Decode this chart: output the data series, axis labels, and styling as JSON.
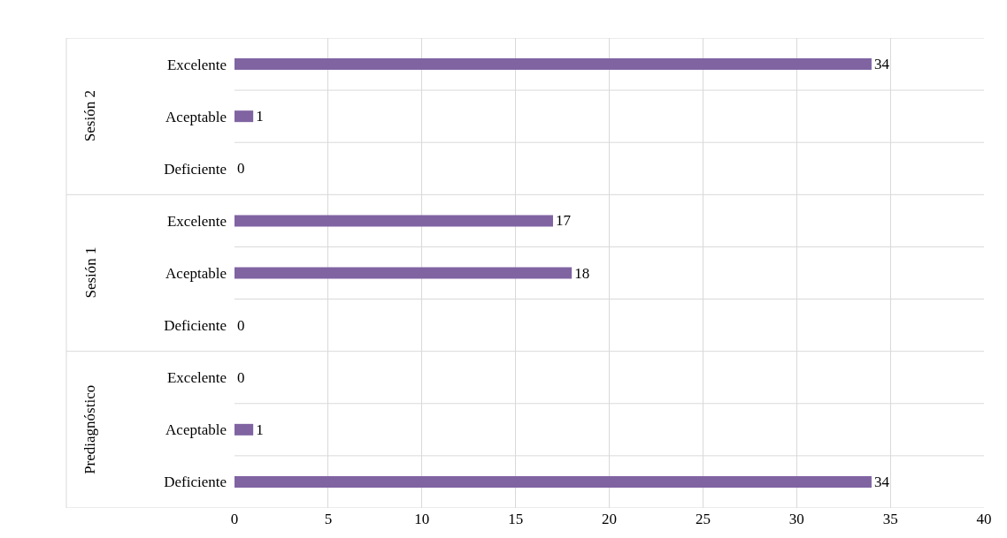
{
  "chart_data": {
    "type": "bar",
    "orientation": "horizontal",
    "categories": [
      "Excelente",
      "Aceptable",
      "Deficiente",
      "Excelente",
      "Aceptable",
      "Deficiente",
      "Excelente",
      "Aceptable",
      "Deficiente"
    ],
    "values": [
      34,
      1,
      0,
      17,
      18,
      0,
      0,
      1,
      34
    ],
    "color": "#8064a2",
    "xlim": [
      0,
      40
    ],
    "xticks": [
      0,
      5,
      10,
      15,
      20,
      25,
      30,
      35,
      40
    ],
    "grid": true,
    "data_labels": true,
    "annotations": [
      "Sesión 2",
      "Sesión 1",
      "Prediagnóstico"
    ]
  }
}
